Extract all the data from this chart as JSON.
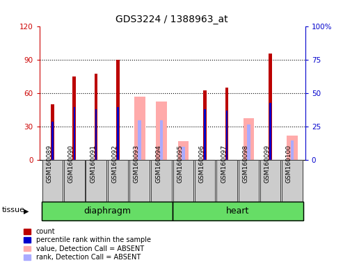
{
  "title": "GDS3224 / 1388963_at",
  "samples": [
    "GSM160089",
    "GSM160090",
    "GSM160091",
    "GSM160092",
    "GSM160093",
    "GSM160094",
    "GSM160095",
    "GSM160096",
    "GSM160097",
    "GSM160098",
    "GSM160099",
    "GSM160100"
  ],
  "tissue_groups": [
    {
      "label": "diaphragm",
      "start": 0,
      "end": 5
    },
    {
      "label": "heart",
      "start": 6,
      "end": 11
    }
  ],
  "count_values": [
    50,
    75,
    78,
    90,
    0,
    0,
    0,
    63,
    65,
    0,
    96,
    0
  ],
  "rank_values": [
    29,
    40,
    38,
    40,
    0,
    0,
    0,
    38,
    37,
    0,
    43,
    0
  ],
  "absent_value_bars": [
    0,
    0,
    0,
    0,
    57,
    53,
    17,
    0,
    0,
    38,
    0,
    22
  ],
  "absent_rank_bars": [
    0,
    0,
    0,
    0,
    30,
    30,
    10,
    0,
    0,
    27,
    0,
    15
  ],
  "left_ylim": [
    0,
    120
  ],
  "right_ylim": [
    0,
    100
  ],
  "left_yticks": [
    0,
    30,
    60,
    90,
    120
  ],
  "right_yticks": [
    0,
    25,
    50,
    75,
    100
  ],
  "right_yticklabels": [
    "0",
    "25",
    "50",
    "75",
    "100%"
  ],
  "bar_color_count": "#bb0000",
  "bar_color_rank": "#0000cc",
  "bar_color_absent_value": "#ffaaaa",
  "bar_color_absent_rank": "#aaaaff",
  "tissue_bg_color": "#66dd66",
  "sample_bg_color": "#cccccc",
  "fig_bg_color": "#ffffff",
  "wide_bar_width": 0.5,
  "narrow_bar_width": 0.15,
  "rank_bar_width": 0.08
}
